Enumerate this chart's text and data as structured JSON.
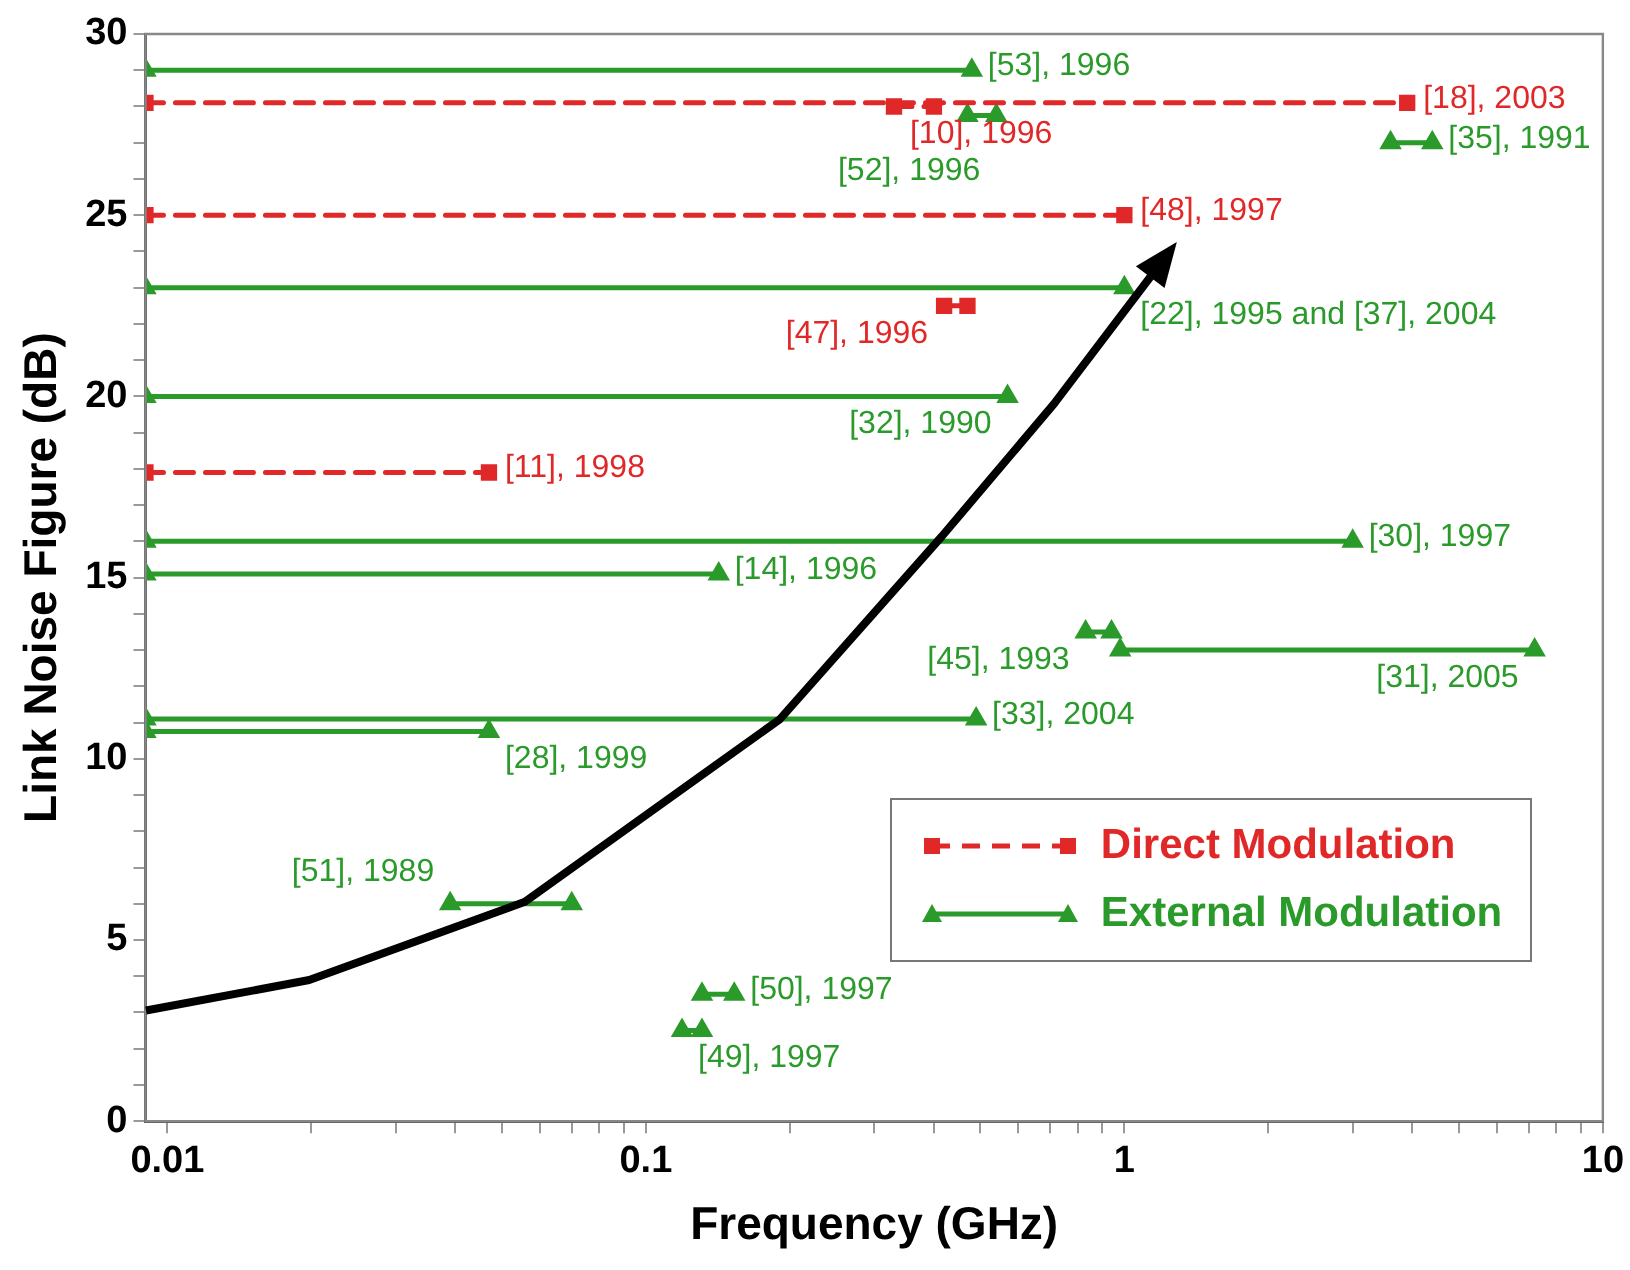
{
  "chart_data": {
    "type": "line",
    "xlabel": "Frequency (GHz)",
    "ylabel": "Link Noise Figure (dB)",
    "log": "x",
    "xlim": [
      0.009,
      10
    ],
    "xticks": [
      0.01,
      {
        "value": 0.02,
        "label": null
      },
      {
        "value": 0.03,
        "label": null
      },
      {
        "value": 0.04,
        "label": null
      },
      {
        "value": 0.05,
        "label": null
      },
      {
        "value": 0.06,
        "label": null
      },
      {
        "value": 0.07,
        "label": null
      },
      {
        "value": 0.08,
        "label": null
      },
      {
        "value": 0.09,
        "label": null
      },
      0.1,
      {
        "value": 0.2,
        "label": null
      },
      {
        "value": 0.3,
        "label": null
      },
      {
        "value": 0.4,
        "label": null
      },
      {
        "value": 0.5,
        "label": null
      },
      {
        "value": 0.6,
        "label": null
      },
      {
        "value": 0.7,
        "label": null
      },
      {
        "value": 0.8,
        "label": null
      },
      {
        "value": 0.9,
        "label": null
      },
      1,
      {
        "value": 2,
        "label": null
      },
      {
        "value": 3,
        "label": null
      },
      {
        "value": 4,
        "label": null
      },
      {
        "value": 5,
        "label": null
      },
      {
        "value": 6,
        "label": null
      },
      {
        "value": 7,
        "label": null
      },
      {
        "value": 8,
        "label": null
      },
      {
        "value": 9,
        "label": null
      },
      10
    ],
    "ylim": [
      0,
      30
    ],
    "yticks": [
      0,
      {
        "value": 1,
        "label": null
      },
      {
        "value": 2,
        "label": null
      },
      {
        "value": 3,
        "label": null
      },
      {
        "value": 4,
        "label": null
      },
      5,
      {
        "value": 6,
        "label": null
      },
      {
        "value": 7,
        "label": null
      },
      {
        "value": 8,
        "label": null
      },
      {
        "value": 9,
        "label": null
      },
      10,
      {
        "value": 11,
        "label": null
      },
      {
        "value": 12,
        "label": null
      },
      {
        "value": 13,
        "label": null
      },
      {
        "value": 14,
        "label": null
      },
      15,
      {
        "value": 16,
        "label": null
      },
      {
        "value": 17,
        "label": null
      },
      {
        "value": 18,
        "label": null
      },
      {
        "value": 19,
        "label": null
      },
      20,
      {
        "value": 21,
        "label": null
      },
      {
        "value": 22,
        "label": null
      },
      {
        "value": 23,
        "label": null
      },
      {
        "value": 24,
        "label": null
      },
      25,
      {
        "value": 26,
        "label": null
      },
      {
        "value": 27,
        "label": null
      },
      {
        "value": 28,
        "label": null
      },
      {
        "value": 29,
        "label": null
      },
      30
    ],
    "grid": false,
    "legend": "bottom right",
    "series": [
      {
        "name": "Direct Modulation",
        "color": "#e02828",
        "line_style": "dashed",
        "marker": "square",
        "x": [
          0.009,
          3.9,
          null,
          0.33,
          0.4,
          null,
          0.009,
          1.0,
          null,
          0.42,
          0.47,
          null,
          0.009,
          0.047
        ],
        "values": [
          28.1,
          28.1,
          null,
          28.0,
          28.0,
          null,
          25.0,
          25.0,
          null,
          22.5,
          22.5,
          null,
          17.9,
          17.9
        ]
      },
      {
        "name": "External Modulation",
        "color": "#2a9a2a",
        "line_style": "solid",
        "marker": "triangle",
        "x": [
          0.009,
          0.48,
          null,
          0.47,
          0.54,
          null,
          3.6,
          4.4,
          null,
          0.009,
          1.0,
          null,
          0.009,
          0.57,
          null,
          0.009,
          3.0,
          null,
          0.009,
          0.142,
          null,
          0.83,
          0.94,
          null,
          0.98,
          7.2,
          null,
          0.009,
          0.49,
          null,
          0.009,
          0.047,
          null,
          0.039,
          0.07,
          null,
          0.131,
          0.153,
          null,
          0.119,
          0.131
        ],
        "values": [
          29.0,
          29.0,
          null,
          27.75,
          27.75,
          null,
          27.0,
          27.0,
          null,
          23.0,
          23.0,
          null,
          20.0,
          20.0,
          null,
          16.0,
          16.0,
          null,
          15.1,
          15.1,
          null,
          13.5,
          13.5,
          null,
          13.0,
          13.0,
          null,
          11.1,
          11.1,
          null,
          10.75,
          10.75,
          null,
          6.0,
          6.0,
          null,
          3.5,
          3.5,
          null,
          2.5,
          2.5
        ]
      }
    ],
    "annotations": [
      {
        "text": "[53], 1996",
        "x": 0.48,
        "y": 29.0
      },
      {
        "text": "[18], 2003",
        "x": 3.9,
        "y": 28.1
      },
      {
        "text": "[10], 1996",
        "x": 0.33,
        "y": 28.0
      },
      {
        "text": "[52], 1996",
        "x": 0.54,
        "y": 27.75
      },
      {
        "text": "[35], 1991",
        "x": 4.4,
        "y": 27.0
      },
      {
        "text": "[48], 1997",
        "x": 1.0,
        "y": 25.0
      },
      {
        "text": "[22], 1995 and [37], 2004",
        "x": 1.0,
        "y": 23.0
      },
      {
        "text": "[47], 1996",
        "x": 0.42,
        "y": 22.5
      },
      {
        "text": "[32], 1990",
        "x": 0.57,
        "y": 20.0
      },
      {
        "text": "[11], 1998",
        "x": 0.047,
        "y": 17.9
      },
      {
        "text": "[30], 1997",
        "x": 3.0,
        "y": 16.0
      },
      {
        "text": "[14], 1996",
        "x": 0.142,
        "y": 15.1
      },
      {
        "text": "[45], 1993",
        "x": 0.83,
        "y": 13.5
      },
      {
        "text": "[31], 2005",
        "x": 7.2,
        "y": 13.0
      },
      {
        "text": "[33], 2004",
        "x": 0.49,
        "y": 11.1
      },
      {
        "text": "[28], 1999",
        "x": 0.047,
        "y": 10.75
      },
      {
        "text": "[51], 1989",
        "x": 0.039,
        "y": 6.0
      },
      {
        "text": "[50], 1997",
        "x": 0.153,
        "y": 3.5
      },
      {
        "text": "[49], 1997",
        "x": 0.119,
        "y": 2.5
      }
    ]
  }
}
